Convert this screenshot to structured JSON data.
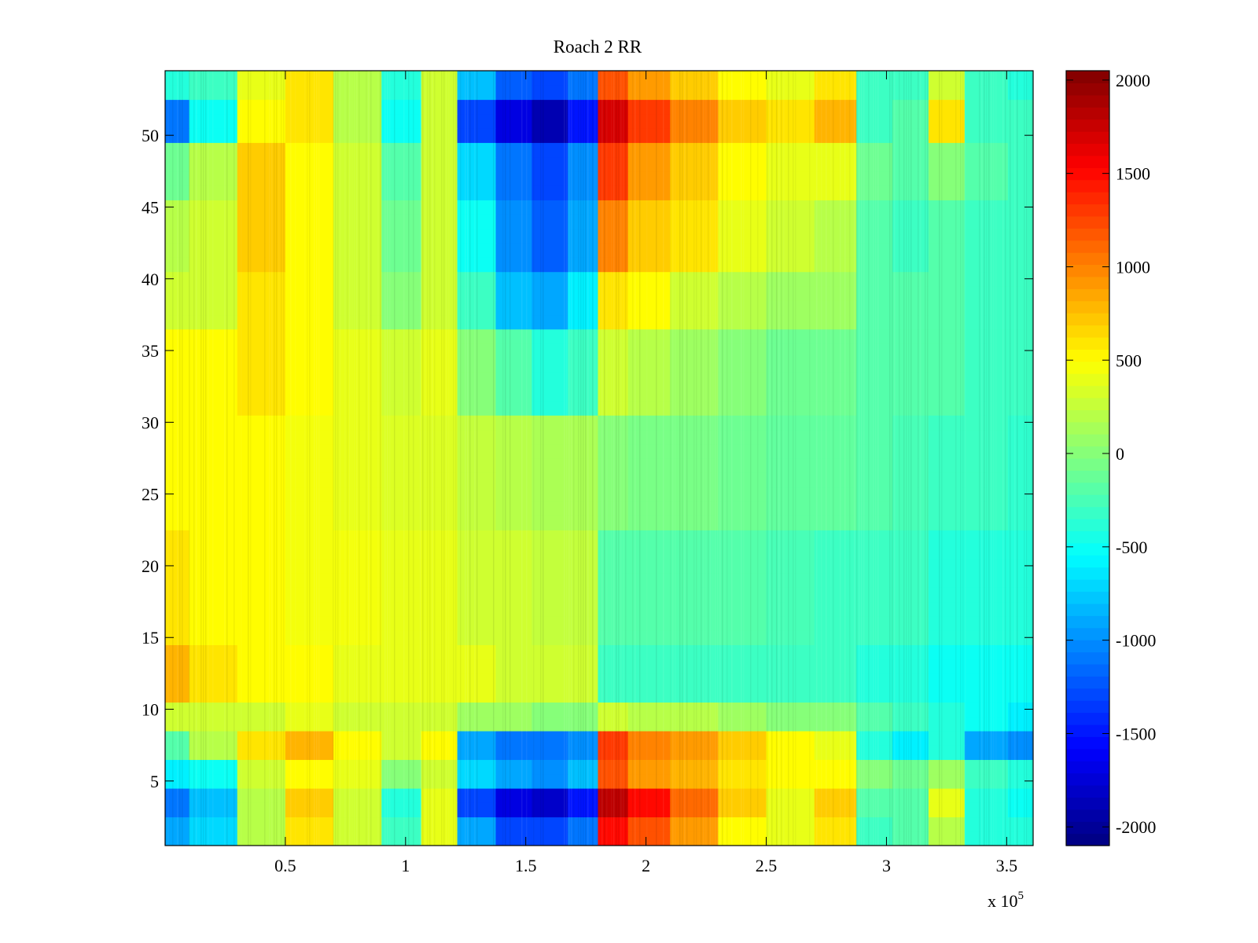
{
  "chart_data": {
    "type": "heatmap",
    "title": "Roach 2 RR",
    "xlabel": "",
    "ylabel": "",
    "x_exponent_label": {
      "base": "x 10",
      "exponent": "5"
    },
    "x_ticks": [
      {
        "label": "0.5",
        "value": 50000
      },
      {
        "label": "1",
        "value": 100000
      },
      {
        "label": "1.5",
        "value": 150000
      },
      {
        "label": "2",
        "value": 200000
      },
      {
        "label": "2.5",
        "value": 250000
      },
      {
        "label": "3",
        "value": 300000
      },
      {
        "label": "3.5",
        "value": 350000
      }
    ],
    "xlim": [
      0,
      361000
    ],
    "y_ticks": [
      {
        "label": "5",
        "value": 5
      },
      {
        "label": "10",
        "value": 10
      },
      {
        "label": "15",
        "value": 15
      },
      {
        "label": "20",
        "value": 20
      },
      {
        "label": "25",
        "value": 25
      },
      {
        "label": "30",
        "value": 30
      },
      {
        "label": "35",
        "value": 35
      },
      {
        "label": "40",
        "value": 40
      },
      {
        "label": "45",
        "value": 45
      },
      {
        "label": "50",
        "value": 50
      }
    ],
    "ylim": [
      0.5,
      54.5
    ],
    "rows": 54,
    "x_columns": [
      0,
      20000,
      40000,
      60000,
      80000,
      100000,
      113000,
      130000,
      145000,
      160000,
      175000,
      185000,
      200000,
      220000,
      240000,
      260000,
      280000,
      295000,
      310000,
      325000,
      340000,
      361000
    ],
    "row_groups": [
      {
        "rows": [
          1,
          2
        ],
        "values": [
          -900,
          -700,
          200,
          600,
          300,
          -300,
          400,
          -900,
          -1300,
          -1300,
          -1100,
          1500,
          1200,
          900,
          500,
          400,
          600,
          -300,
          -200,
          200,
          -400,
          -400
        ]
      },
      {
        "rows": [
          3,
          4
        ],
        "values": [
          -1100,
          -800,
          200,
          700,
          300,
          -400,
          400,
          -1300,
          -1700,
          -1800,
          -1500,
          1800,
          1500,
          1100,
          700,
          400,
          700,
          -200,
          -200,
          400,
          -400,
          -500
        ]
      },
      {
        "rows": [
          5,
          6
        ],
        "values": [
          -600,
          -500,
          300,
          500,
          400,
          0,
          300,
          -700,
          -900,
          -1000,
          -800,
          1200,
          900,
          800,
          600,
          500,
          500,
          0,
          -100,
          100,
          -300,
          -400
        ]
      },
      {
        "rows": [
          7,
          8
        ],
        "values": [
          -200,
          200,
          600,
          800,
          500,
          300,
          500,
          -900,
          -1100,
          -1100,
          -1000,
          1300,
          1000,
          900,
          700,
          500,
          400,
          -400,
          -600,
          -400,
          -900,
          -1000
        ]
      },
      {
        "rows": [
          9,
          10
        ],
        "values": [
          300,
          300,
          300,
          400,
          300,
          300,
          300,
          100,
          100,
          0,
          0,
          300,
          200,
          200,
          100,
          0,
          0,
          -200,
          -300,
          -400,
          -500,
          -600
        ]
      },
      {
        "rows": [
          11,
          12,
          13,
          14
        ],
        "values": [
          800,
          600,
          500,
          500,
          400,
          400,
          400,
          400,
          300,
          300,
          300,
          -300,
          -300,
          -300,
          -300,
          -300,
          -300,
          -400,
          -400,
          -500,
          -500,
          -500
        ]
      },
      {
        "rows": [
          15,
          16,
          17,
          18,
          19,
          20,
          21,
          22
        ],
        "values": [
          600,
          500,
          500,
          450,
          450,
          400,
          400,
          300,
          300,
          250,
          250,
          -200,
          -200,
          -200,
          -200,
          -250,
          -300,
          -300,
          -300,
          -400,
          -400,
          -400
        ]
      },
      {
        "rows": [
          23,
          24,
          25,
          26,
          27,
          28,
          29,
          30
        ],
        "values": [
          500,
          500,
          500,
          450,
          400,
          350,
          350,
          250,
          200,
          150,
          150,
          0,
          -50,
          -50,
          -100,
          -150,
          -150,
          -200,
          -250,
          -300,
          -300,
          -350
        ]
      },
      {
        "rows": [
          31,
          32,
          33,
          34,
          35,
          36
        ],
        "values": [
          500,
          500,
          600,
          500,
          400,
          300,
          400,
          0,
          -200,
          -400,
          -300,
          300,
          200,
          100,
          0,
          -100,
          -100,
          -200,
          -200,
          -200,
          -300,
          -300
        ]
      },
      {
        "rows": [
          37,
          38,
          39,
          40
        ],
        "values": [
          300,
          300,
          600,
          500,
          300,
          0,
          300,
          -300,
          -800,
          -900,
          -600,
          600,
          500,
          300,
          200,
          100,
          100,
          -200,
          -200,
          -200,
          -300,
          -300
        ]
      },
      {
        "rows": [
          41,
          42,
          43,
          44,
          45
        ],
        "values": [
          200,
          300,
          700,
          500,
          300,
          -100,
          300,
          -500,
          -1000,
          -1200,
          -900,
          1000,
          700,
          600,
          400,
          300,
          200,
          -200,
          -300,
          -200,
          -300,
          -300
        ]
      },
      {
        "rows": [
          46,
          47,
          48,
          49
        ],
        "values": [
          -100,
          200,
          700,
          500,
          300,
          -200,
          300,
          -700,
          -1100,
          -1300,
          -1000,
          1300,
          900,
          700,
          500,
          400,
          400,
          -100,
          -200,
          0,
          -200,
          -300
        ]
      },
      {
        "rows": [
          50,
          51,
          52
        ],
        "values": [
          -1100,
          -500,
          500,
          600,
          200,
          -500,
          300,
          -1300,
          -1700,
          -1900,
          -1500,
          1700,
          1300,
          1000,
          700,
          600,
          800,
          -300,
          -200,
          600,
          -300,
          -300
        ]
      },
      {
        "rows": [
          53,
          54
        ],
        "values": [
          -400,
          -300,
          400,
          600,
          200,
          -400,
          300,
          -800,
          -1200,
          -1300,
          -1100,
          1200,
          900,
          700,
          500,
          400,
          600,
          -300,
          -300,
          300,
          -300,
          -400
        ]
      }
    ],
    "colorbar": {
      "colormap": "jet",
      "clim": [
        -2100,
        2050
      ],
      "ticks": [
        {
          "label": "2000",
          "value": 2000
        },
        {
          "label": "1500",
          "value": 1500
        },
        {
          "label": "1000",
          "value": 1000
        },
        {
          "label": "500",
          "value": 500
        },
        {
          "label": "0",
          "value": 0
        },
        {
          "label": "-500",
          "value": -500
        },
        {
          "label": "-1000",
          "value": -1000
        },
        {
          "label": "-1500",
          "value": -1500
        },
        {
          "label": "-2000",
          "value": -2000
        }
      ]
    }
  }
}
